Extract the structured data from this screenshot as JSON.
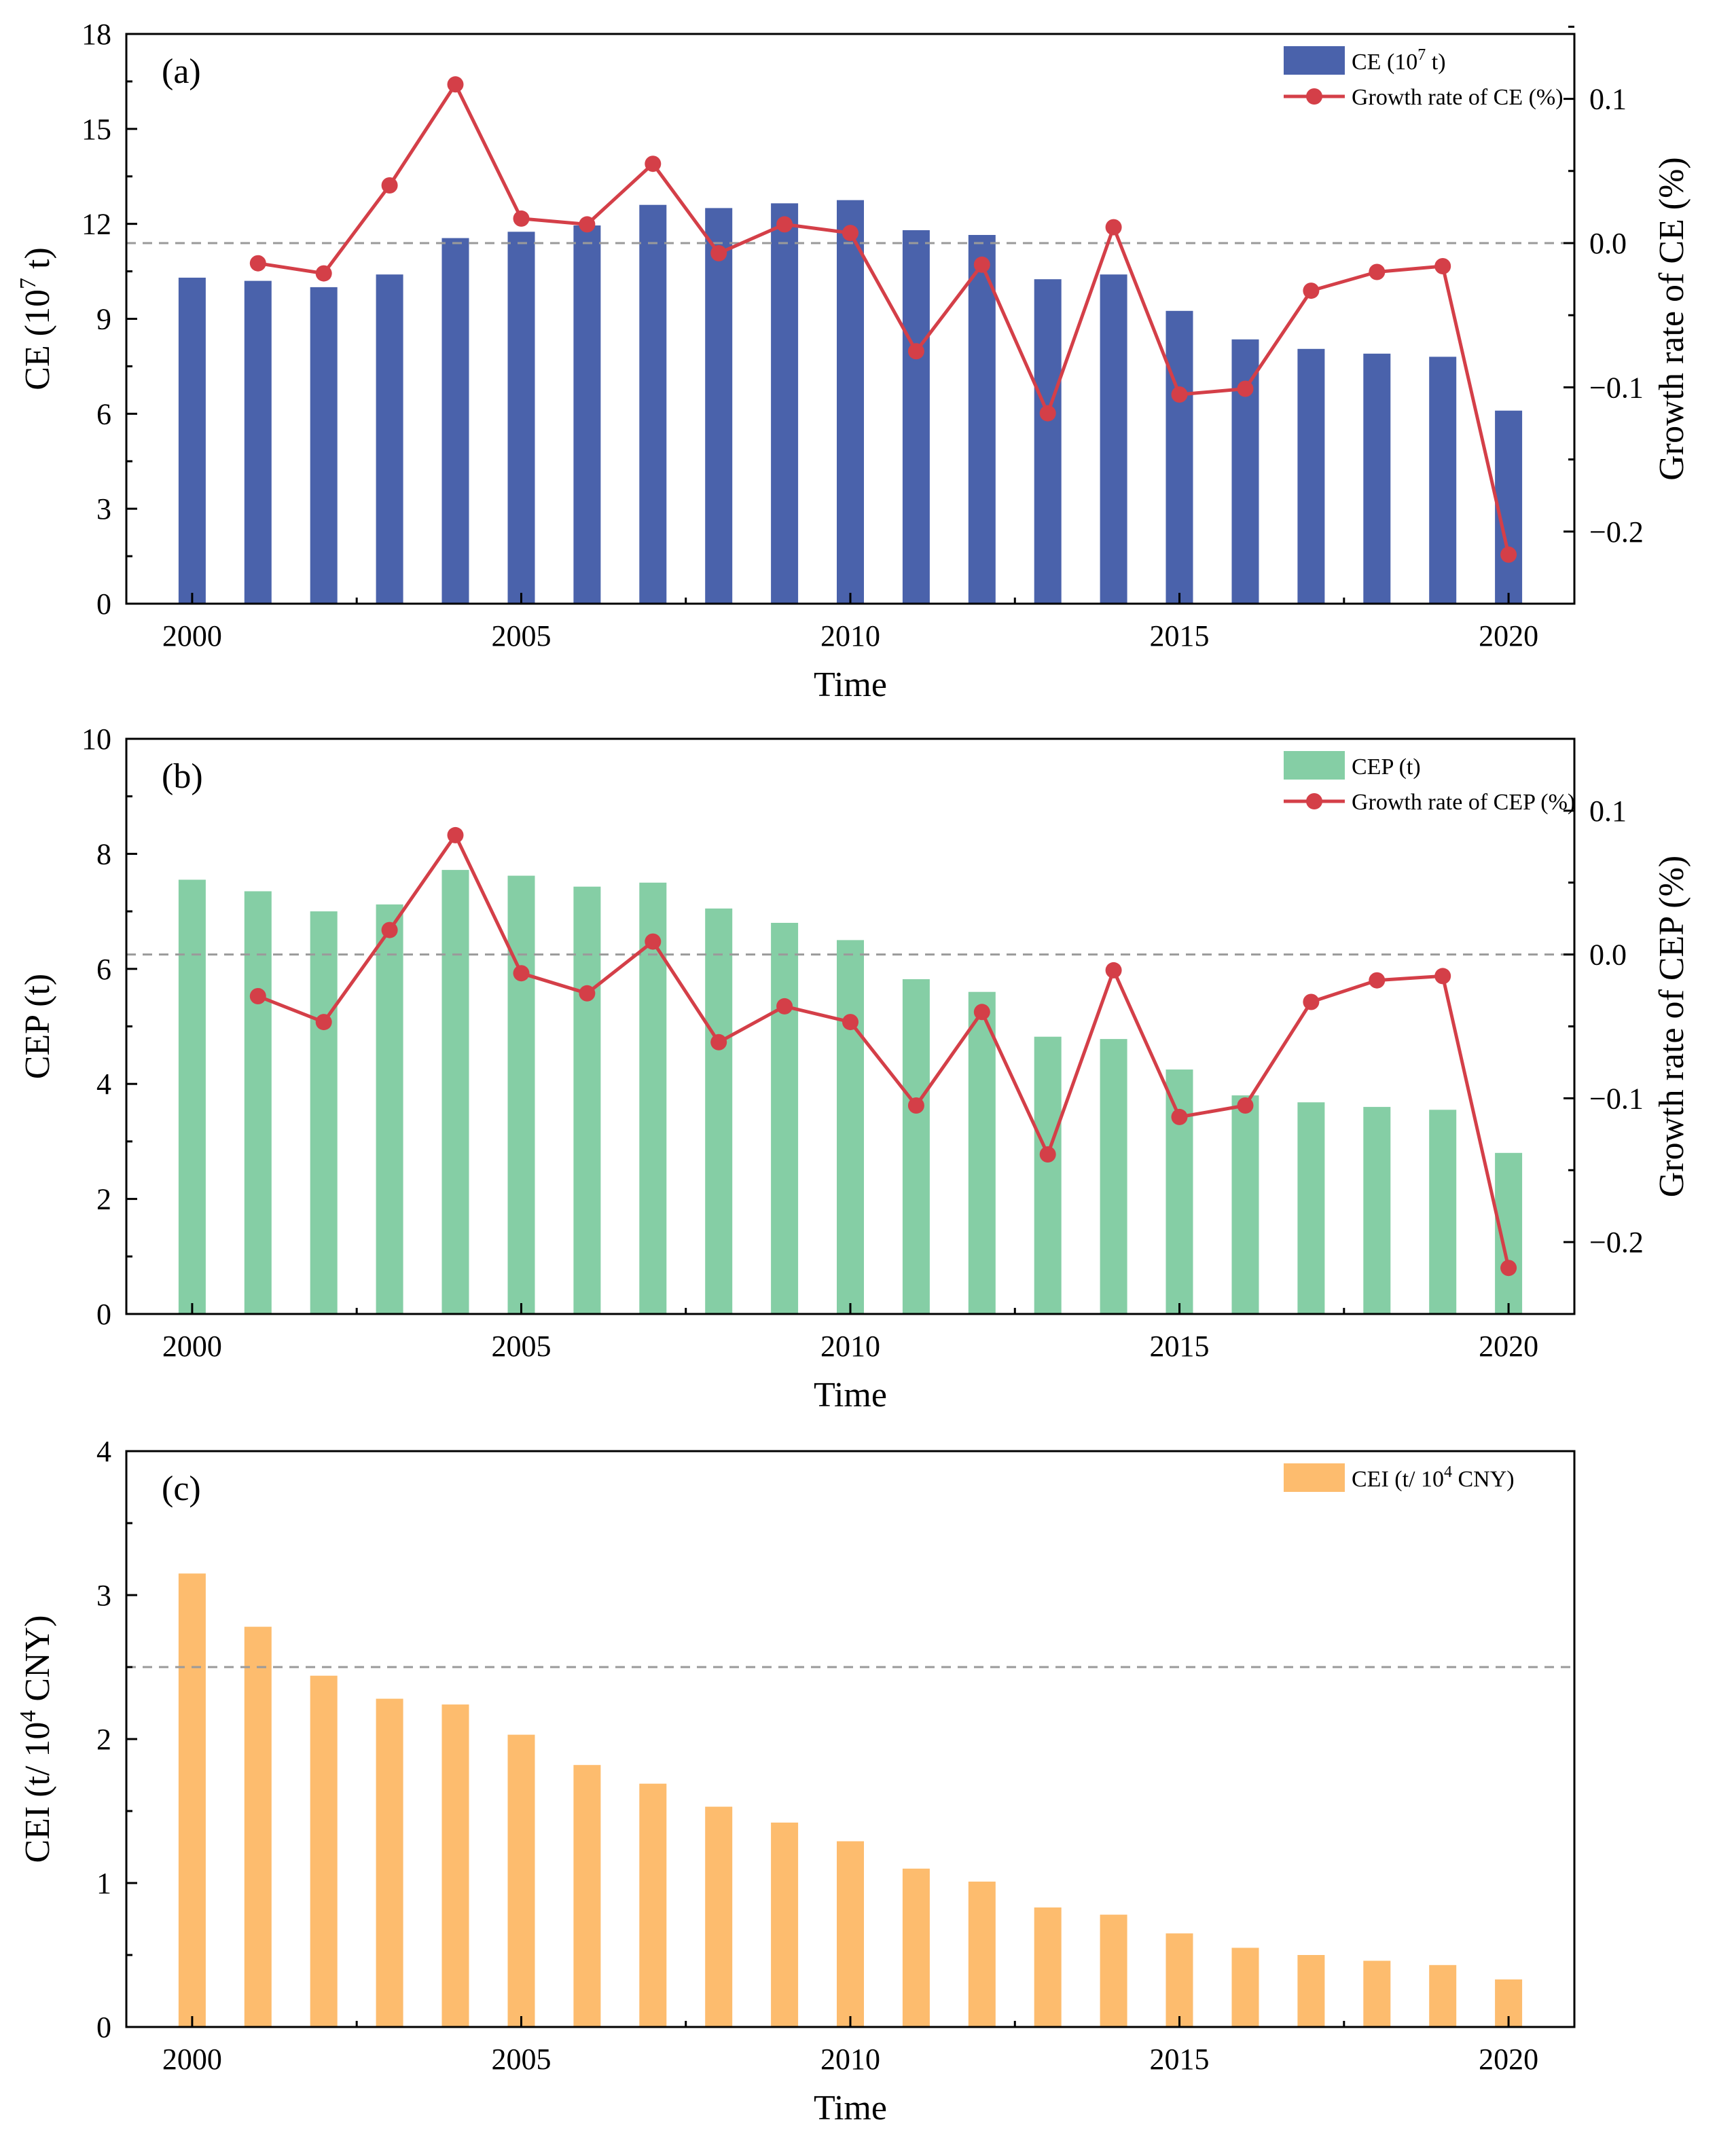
{
  "colors": {
    "ce_bar": "#4a62ab",
    "cep_bar": "#85cea5",
    "cei_bar": "#fdbc6e",
    "growth_line": "#d43f48",
    "reference_line": "#9a9a9a",
    "axis": "#000000"
  },
  "chart_data": [
    {
      "type": "bar",
      "panel_label": "(a)",
      "title": "",
      "xlabel": "Time",
      "ylabel": "CE (10⁷ t)",
      "y2label": "Growth rate of CE (%)",
      "x": [
        2000,
        2001,
        2002,
        2003,
        2004,
        2005,
        2006,
        2007,
        2008,
        2009,
        2010,
        2011,
        2012,
        2013,
        2014,
        2015,
        2016,
        2017,
        2018,
        2019,
        2020
      ],
      "xlim": [
        1999,
        2021
      ],
      "xticks": [
        2000,
        2005,
        2010,
        2015,
        2020
      ],
      "ylim": [
        0,
        18
      ],
      "yticks": [
        0,
        3,
        6,
        9,
        12,
        15,
        18
      ],
      "y2lim": [
        -0.25,
        0.145
      ],
      "y2ticks": [
        -0.2,
        -0.1,
        0.0,
        0.1
      ],
      "y2ticklabels": [
        "−0.2",
        "−0.1",
        "0.0",
        "0.1"
      ],
      "reference_line": {
        "axis": "y2",
        "value": 0.0,
        "style": "dashed"
      },
      "legend_position": "top-right",
      "series": [
        {
          "name": "CE (10⁷ t)",
          "legend_main": "CE (10",
          "legend_sup": "7",
          "legend_tail": " t)",
          "type": "bar",
          "axis": "y",
          "color": "#4a62ab",
          "values": [
            10.3,
            10.2,
            10.0,
            10.4,
            11.55,
            11.75,
            11.95,
            12.6,
            12.5,
            12.65,
            12.75,
            11.8,
            11.65,
            10.25,
            10.4,
            9.25,
            8.35,
            8.05,
            7.9,
            7.8,
            6.1
          ]
        },
        {
          "name": "Growth rate of CE (%)",
          "legend_main": "Growth rate of CE (%)",
          "legend_sup": "",
          "legend_tail": "",
          "type": "line",
          "axis": "y2",
          "color": "#d43f48",
          "x": [
            2001,
            2002,
            2003,
            2004,
            2005,
            2006,
            2007,
            2008,
            2009,
            2010,
            2011,
            2012,
            2013,
            2014,
            2015,
            2016,
            2017,
            2018,
            2019,
            2020
          ],
          "values": [
            -0.014,
            -0.021,
            0.04,
            0.11,
            0.017,
            0.013,
            0.055,
            -0.007,
            0.013,
            0.007,
            -0.075,
            -0.015,
            -0.118,
            0.011,
            -0.105,
            -0.101,
            -0.033,
            -0.02,
            -0.016,
            -0.216
          ]
        }
      ]
    },
    {
      "type": "bar",
      "panel_label": "(b)",
      "title": "",
      "xlabel": "Time",
      "ylabel": "CEP (t)",
      "y2label": "Growth rate of CEP (%)",
      "x": [
        2000,
        2001,
        2002,
        2003,
        2004,
        2005,
        2006,
        2007,
        2008,
        2009,
        2010,
        2011,
        2012,
        2013,
        2014,
        2015,
        2016,
        2017,
        2018,
        2019,
        2020
      ],
      "xlim": [
        1999,
        2021
      ],
      "xticks": [
        2000,
        2005,
        2010,
        2015,
        2020
      ],
      "ylim": [
        0,
        10
      ],
      "yticks": [
        0,
        2,
        4,
        6,
        8,
        10
      ],
      "y2lim": [
        -0.25,
        0.15
      ],
      "y2ticks": [
        -0.2,
        -0.1,
        0.0,
        0.1
      ],
      "y2ticklabels": [
        "−0.2",
        "−0.1",
        "0.0",
        "0.1"
      ],
      "reference_line": {
        "axis": "y2",
        "value": 0.0,
        "style": "dashed"
      },
      "legend_position": "top-right",
      "series": [
        {
          "name": "CEP (t)",
          "legend_main": "CEP (t)",
          "legend_sup": "",
          "legend_tail": "",
          "type": "bar",
          "axis": "y",
          "color": "#85cea5",
          "values": [
            7.55,
            7.35,
            7.0,
            7.12,
            7.72,
            7.62,
            7.43,
            7.5,
            7.05,
            6.8,
            6.5,
            5.82,
            5.6,
            4.82,
            4.78,
            4.25,
            3.8,
            3.68,
            3.6,
            3.55,
            2.8
          ]
        },
        {
          "name": "Growth rate of CEP (%)",
          "legend_main": "Growth rate of CEP (%)",
          "legend_sup": "",
          "legend_tail": "",
          "type": "line",
          "axis": "y2",
          "color": "#d43f48",
          "x": [
            2001,
            2002,
            2003,
            2004,
            2005,
            2006,
            2007,
            2008,
            2009,
            2010,
            2011,
            2012,
            2013,
            2014,
            2015,
            2016,
            2017,
            2018,
            2019,
            2020
          ],
          "values": [
            -0.029,
            -0.047,
            0.017,
            0.083,
            -0.013,
            -0.027,
            0.009,
            -0.061,
            -0.036,
            -0.047,
            -0.105,
            -0.04,
            -0.139,
            -0.011,
            -0.113,
            -0.105,
            -0.033,
            -0.018,
            -0.015,
            -0.218
          ]
        }
      ]
    },
    {
      "type": "bar",
      "panel_label": "(c)",
      "title": "",
      "xlabel": "Time",
      "ylabel": "CEI (t/ 10⁴ CNY)",
      "x": [
        2000,
        2001,
        2002,
        2003,
        2004,
        2005,
        2006,
        2007,
        2008,
        2009,
        2010,
        2011,
        2012,
        2013,
        2014,
        2015,
        2016,
        2017,
        2018,
        2019,
        2020
      ],
      "xlim": [
        1999,
        2021
      ],
      "xticks": [
        2000,
        2005,
        2010,
        2015,
        2020
      ],
      "ylim": [
        0,
        4
      ],
      "yticks": [
        0,
        1,
        2,
        3,
        4
      ],
      "reference_line": {
        "axis": "y",
        "value": 2.5,
        "style": "dashed"
      },
      "legend_position": "top-right",
      "series": [
        {
          "name": "CEI (t/ 10⁴ CNY)",
          "legend_main": "CEI (t/ 10",
          "legend_sup": "4",
          "legend_tail": " CNY)",
          "type": "bar",
          "axis": "y",
          "color": "#fdbc6e",
          "values": [
            3.15,
            2.78,
            2.44,
            2.28,
            2.24,
            2.03,
            1.82,
            1.69,
            1.53,
            1.42,
            1.29,
            1.1,
            1.01,
            0.83,
            0.78,
            0.65,
            0.55,
            0.5,
            0.46,
            0.43,
            0.33
          ]
        }
      ]
    }
  ]
}
